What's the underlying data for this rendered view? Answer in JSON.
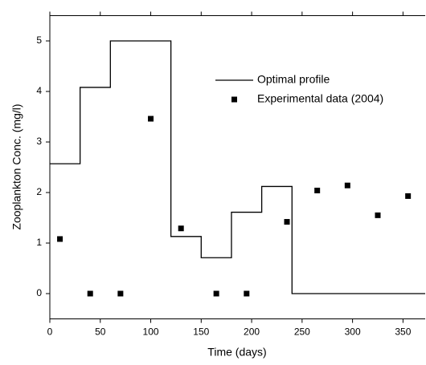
{
  "chart_data": {
    "type": "step-scatter",
    "xlabel": "Time (days)",
    "ylabel": "Zooplankton Conc. (mg/l)",
    "xlim": [
      0,
      372
    ],
    "ylim": [
      -0.5,
      5.5
    ],
    "xticks": [
      0,
      50,
      100,
      150,
      200,
      250,
      300,
      350
    ],
    "yticks": [
      0,
      1,
      2,
      3,
      4,
      5
    ],
    "series": [
      {
        "name": "Optimal profile",
        "kind": "step",
        "color": "#000000",
        "x": [
          0,
          30,
          60,
          120,
          150,
          180,
          210,
          240
        ],
        "values": [
          2.57,
          4.08,
          5.0,
          1.13,
          0.71,
          1.61,
          2.12,
          0
        ]
      },
      {
        "name": "Experimental data (2004)",
        "kind": "scatter",
        "color": "#000000",
        "x": [
          10,
          40,
          70,
          100,
          130,
          165,
          195,
          235,
          265,
          295,
          325,
          355
        ],
        "values": [
          1.08,
          0,
          0,
          3.46,
          1.29,
          0,
          0,
          1.42,
          2.04,
          2.14,
          1.55,
          1.93
        ]
      }
    ],
    "legend": "upper right"
  }
}
